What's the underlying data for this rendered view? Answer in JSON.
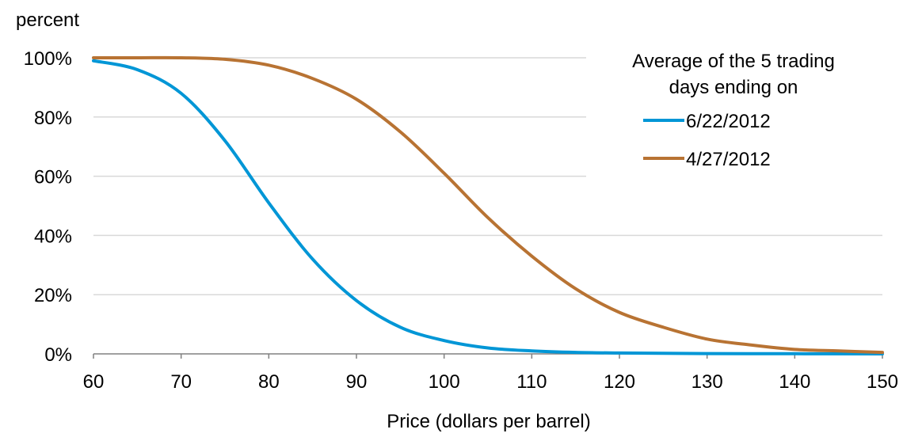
{
  "chart_data": {
    "type": "line",
    "title": "",
    "ylabel": "percent",
    "xlabel": "Price (dollars per barrel)",
    "xlim": [
      60,
      150
    ],
    "ylim": [
      0,
      100
    ],
    "x_ticks": [
      60,
      70,
      80,
      90,
      100,
      110,
      120,
      130,
      140,
      150
    ],
    "y_ticks": [
      0,
      20,
      40,
      60,
      80,
      100
    ],
    "y_tick_labels": [
      "0%",
      "20%",
      "40%",
      "60%",
      "80%",
      "100%"
    ],
    "grid": "horizontal",
    "legend": {
      "title_lines": [
        "Average of the 5 trading",
        "days ending on"
      ],
      "position": "top-right"
    },
    "series": [
      {
        "name": "6/22/2012",
        "color": "#0096D6",
        "x": [
          60,
          65,
          70,
          75,
          80,
          85,
          90,
          95,
          100,
          105,
          110,
          115,
          120,
          130,
          140,
          150
        ],
        "y": [
          99,
          96,
          88,
          72,
          51,
          32,
          18,
          9,
          4.5,
          2,
          1,
          0.5,
          0.3,
          0.1,
          0.05,
          0
        ]
      },
      {
        "name": "4/27/2012",
        "color": "#B87333",
        "x": [
          60,
          65,
          70,
          75,
          80,
          85,
          90,
          95,
          100,
          105,
          110,
          115,
          120,
          125,
          130,
          135,
          140,
          145,
          150
        ],
        "y": [
          100,
          100,
          100,
          99.5,
          97.5,
          93,
          86,
          75,
          61,
          46,
          33,
          22,
          14,
          9,
          5,
          3,
          1.5,
          1,
          0.5
        ]
      }
    ]
  }
}
